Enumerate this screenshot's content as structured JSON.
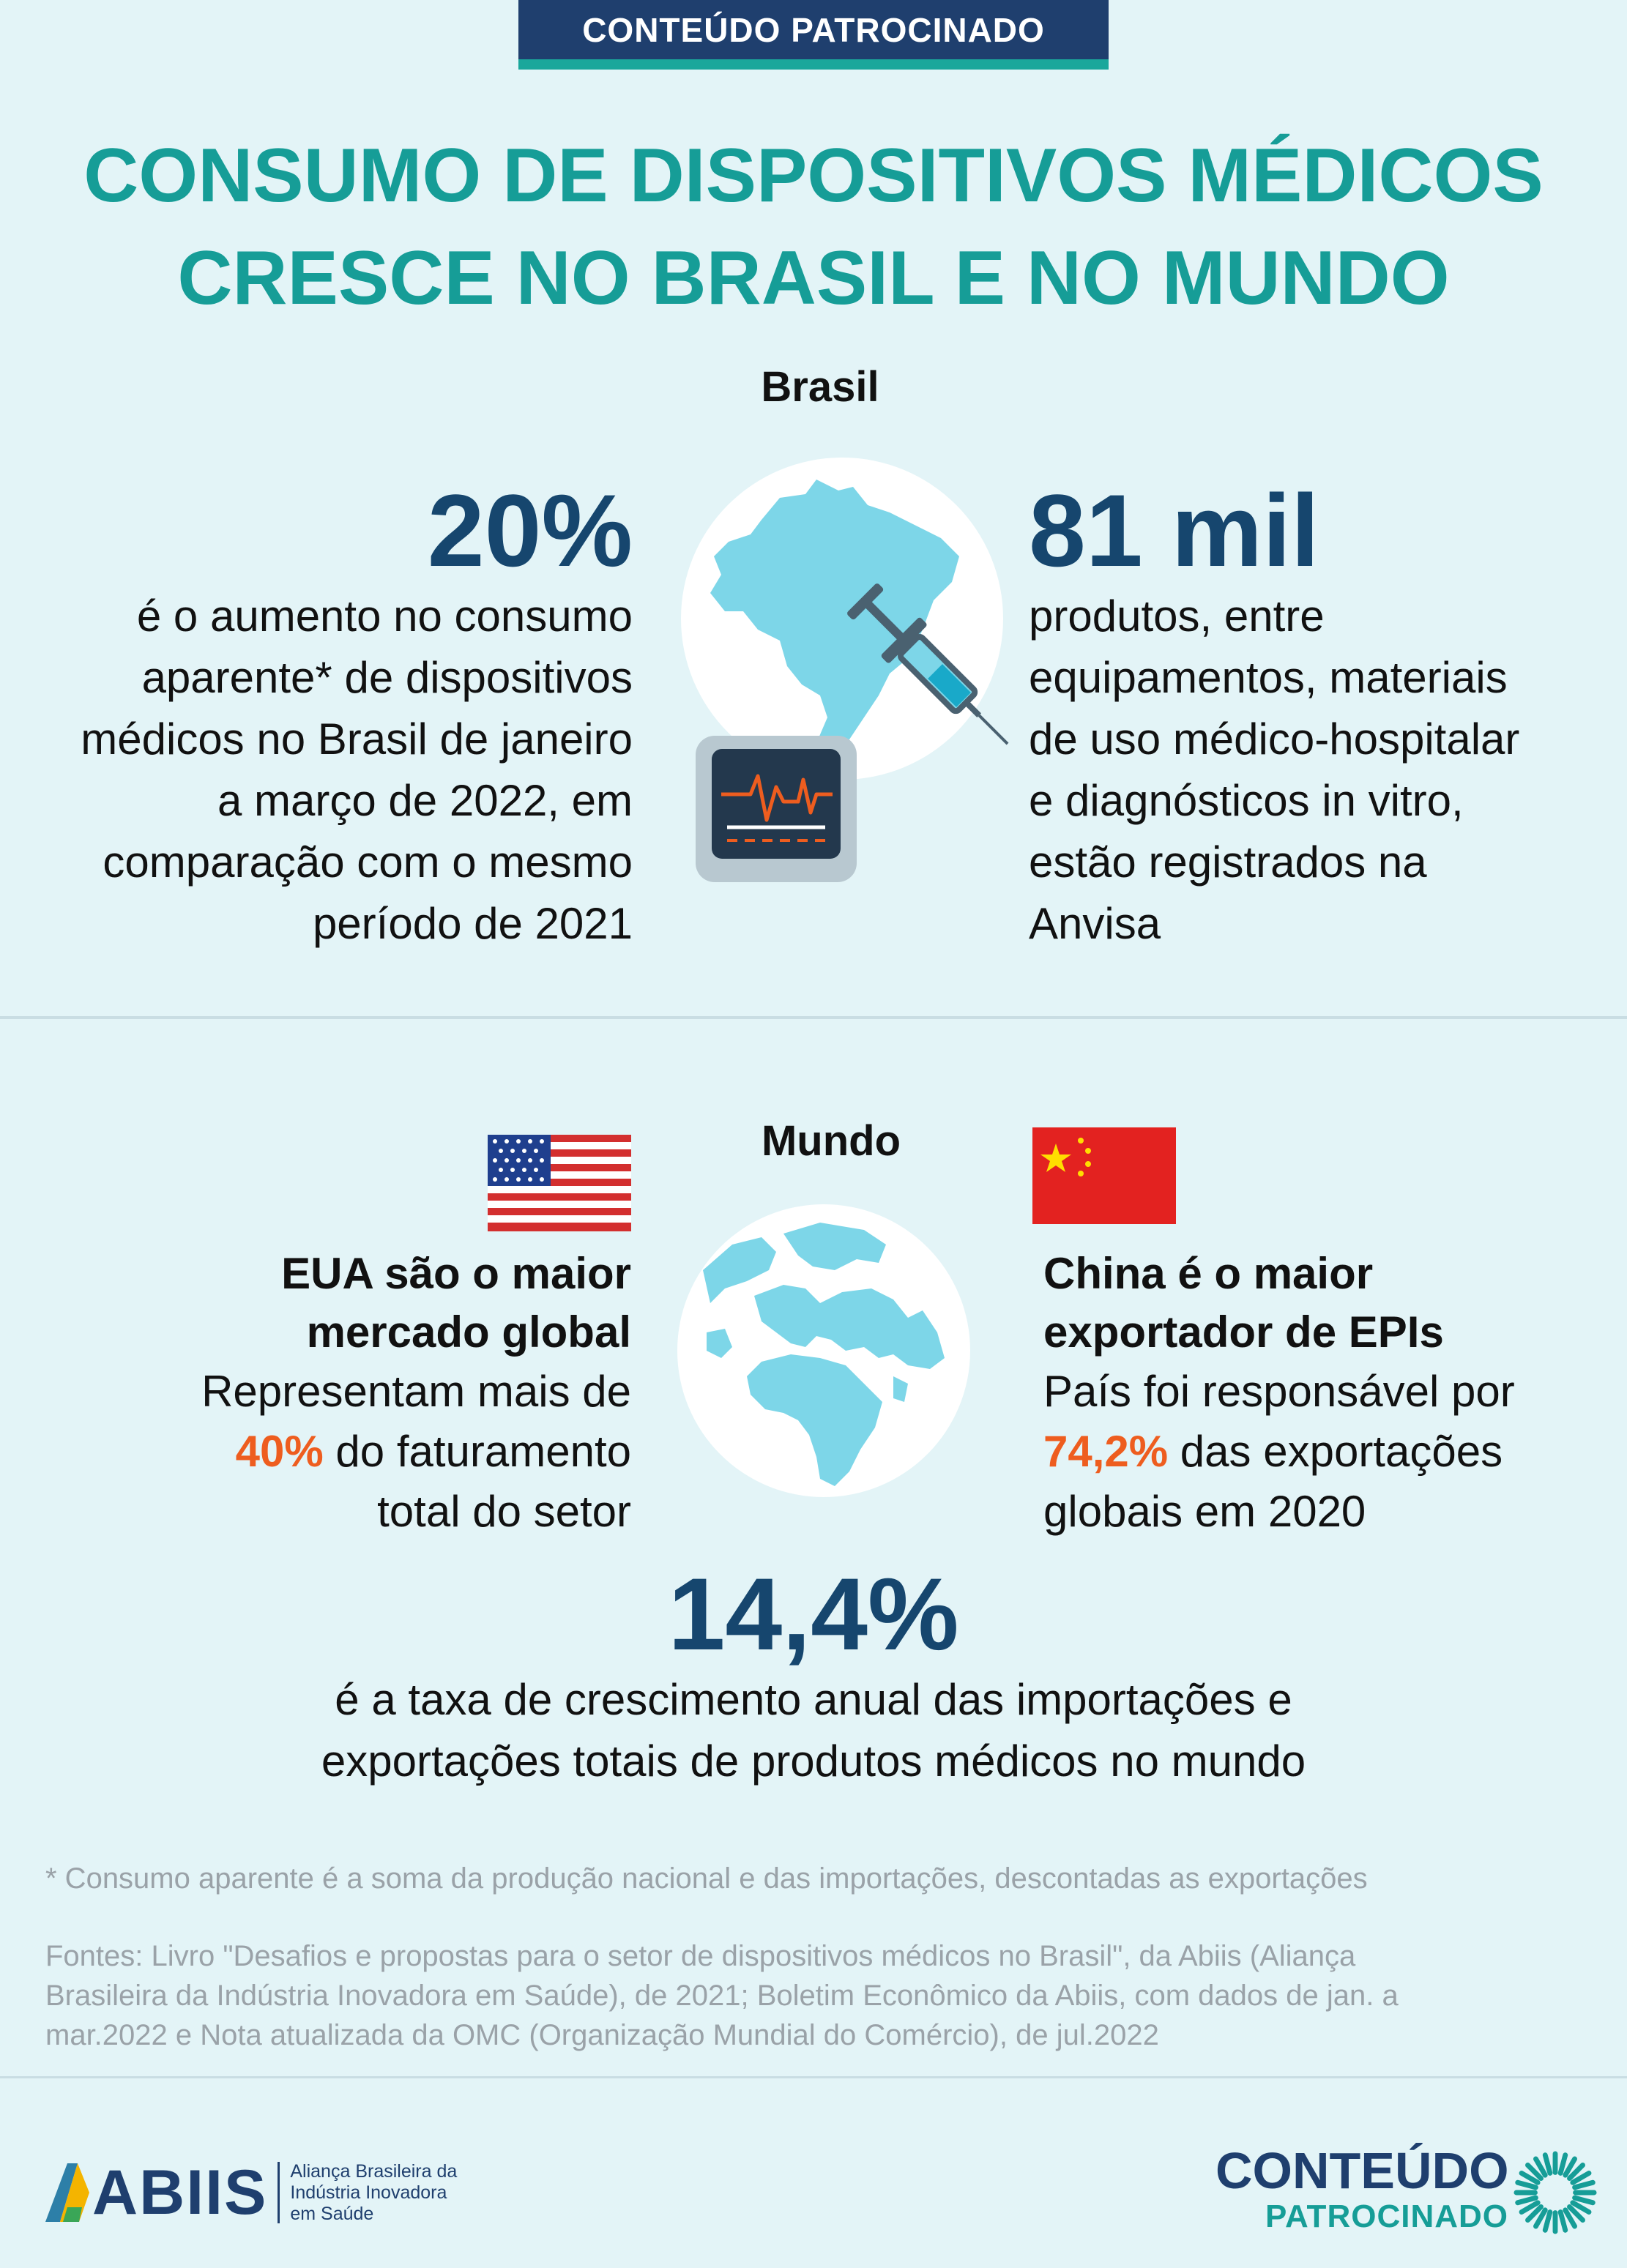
{
  "badge": {
    "label": "CONTEÚDO PATROCINADO"
  },
  "title": {
    "line1": "CONSUMO DE DISPOSITIVOS MÉDICOS",
    "line2": "CRESCE NO BRASIL E NO MUNDO"
  },
  "brasil": {
    "label": "Brasil",
    "left_stat": {
      "value": "20%",
      "lines": [
        "é o aumento no consumo",
        "aparente* de dispositivos",
        "médicos no Brasil de janeiro",
        "a março de 2022, em",
        "comparação com o mesmo",
        "período de 2021"
      ]
    },
    "right_stat": {
      "value": "81 mil",
      "lines": [
        "produtos, entre",
        "equipamentos, materiais",
        "de uso médico-hospitalar",
        "e diagnósticos in vitro,",
        "estão registrados na",
        "Anvisa"
      ]
    }
  },
  "mundo": {
    "label": "Mundo",
    "usa": {
      "headline1": "EUA são o maior",
      "headline2": "mercado global",
      "line1": "Representam mais de",
      "accent": "40%",
      "line2_rest": " do faturamento",
      "line3": "total do setor"
    },
    "china": {
      "headline1": "China é o maior",
      "headline2": "exportador de EPIs",
      "line1": "País foi responsável por",
      "accent": "74,2%",
      "line2_rest": " das exportações",
      "line3": "globais em 2020"
    },
    "growth": {
      "value": "14,4%",
      "line1": "é a taxa de crescimento anual das importações e",
      "line2": "exportações totais de produtos médicos no mundo"
    }
  },
  "footnote": "* Consumo aparente é a soma da produção nacional e das importações, descontadas as exportações",
  "sources": [
    "Fontes: Livro \"Desafios e propostas para o setor de dispositivos médicos no Brasil\", da Abiis (Aliança",
    "Brasileira da Indústria Inovadora em Saúde), de 2021; Boletim Econômico da Abiis, com dados de jan. a",
    "mar.2022 e Nota atualizada da OMC (Organização Mundial do Comércio), de jul.2022"
  ],
  "footer": {
    "abiis_logo": "ABIIS",
    "abiis_line1": "Aliança Brasileira da",
    "abiis_line2": "Indústria Inovadora",
    "abiis_line3": "em Saúde",
    "cp_line1": "CONTEÚDO",
    "cp_line2": "PATROCINADO"
  },
  "colors": {
    "teal": "#169d97",
    "navy": "#16466e",
    "accent": "#ee5d1f",
    "background": "#e3f4f7"
  }
}
